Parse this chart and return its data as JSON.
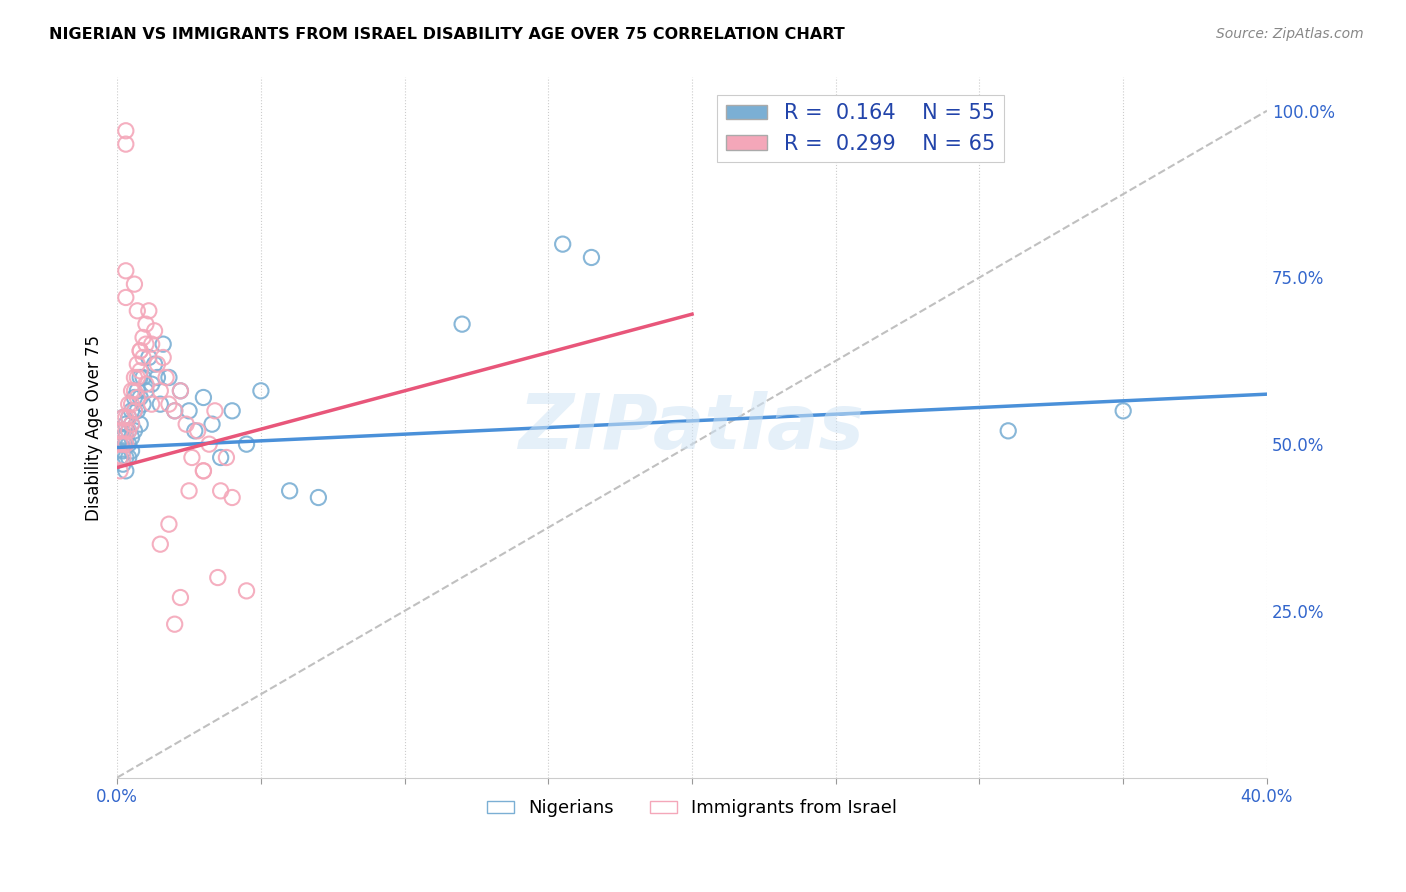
{
  "title": "NIGERIAN VS IMMIGRANTS FROM ISRAEL DISABILITY AGE OVER 75 CORRELATION CHART",
  "source": "Source: ZipAtlas.com",
  "ylabel": "Disability Age Over 75",
  "xlim": [
    0.0,
    0.4
  ],
  "ylim": [
    0.0,
    1.05
  ],
  "xtick_positions": [
    0.0,
    0.05,
    0.1,
    0.15,
    0.2,
    0.25,
    0.3,
    0.35,
    0.4
  ],
  "xticklabels": [
    "0.0%",
    "",
    "",
    "",
    "",
    "",
    "",
    "",
    "40.0%"
  ],
  "ytick_positions": [
    0.0,
    0.25,
    0.5,
    0.75,
    1.0
  ],
  "yticklabels_right": [
    "",
    "25.0%",
    "50.0%",
    "75.0%",
    "100.0%"
  ],
  "blue_color": "#7bafd4",
  "pink_color": "#f4a7b9",
  "blue_line_color": "#4a90d9",
  "pink_line_color": "#e8567a",
  "diagonal_color": "#c0c0c0",
  "legend_R_blue": "0.164",
  "legend_N_blue": "55",
  "legend_R_pink": "0.299",
  "legend_N_pink": "65",
  "legend_text_color": "#2244aa",
  "watermark": "ZIPatlas",
  "blue_line_x0": 0.0,
  "blue_line_x1": 0.4,
  "blue_line_y0": 0.495,
  "blue_line_y1": 0.575,
  "pink_line_x0": 0.0,
  "pink_line_x1": 0.2,
  "pink_line_y0": 0.465,
  "pink_line_y1": 0.695,
  "nigerian_x": [
    0.001,
    0.001,
    0.001,
    0.002,
    0.002,
    0.002,
    0.002,
    0.003,
    0.003,
    0.003,
    0.003,
    0.003,
    0.004,
    0.004,
    0.004,
    0.004,
    0.005,
    0.005,
    0.005,
    0.005,
    0.006,
    0.006,
    0.006,
    0.007,
    0.007,
    0.008,
    0.008,
    0.008,
    0.009,
    0.009,
    0.01,
    0.011,
    0.012,
    0.013,
    0.014,
    0.015,
    0.016,
    0.018,
    0.02,
    0.022,
    0.025,
    0.027,
    0.03,
    0.033,
    0.036,
    0.04,
    0.045,
    0.05,
    0.06,
    0.07,
    0.12,
    0.155,
    0.165,
    0.31,
    0.35
  ],
  "nigerian_y": [
    0.52,
    0.5,
    0.48,
    0.54,
    0.51,
    0.49,
    0.47,
    0.53,
    0.51,
    0.5,
    0.48,
    0.46,
    0.54,
    0.52,
    0.5,
    0.48,
    0.55,
    0.53,
    0.51,
    0.49,
    0.57,
    0.55,
    0.52,
    0.58,
    0.55,
    0.6,
    0.57,
    0.53,
    0.6,
    0.56,
    0.58,
    0.63,
    0.59,
    0.62,
    0.6,
    0.56,
    0.65,
    0.6,
    0.55,
    0.58,
    0.55,
    0.52,
    0.57,
    0.53,
    0.48,
    0.55,
    0.5,
    0.58,
    0.43,
    0.42,
    0.68,
    0.8,
    0.78,
    0.52,
    0.55
  ],
  "israel_x": [
    0.001,
    0.001,
    0.001,
    0.001,
    0.002,
    0.002,
    0.002,
    0.002,
    0.003,
    0.003,
    0.003,
    0.003,
    0.003,
    0.004,
    0.004,
    0.004,
    0.005,
    0.005,
    0.005,
    0.006,
    0.006,
    0.006,
    0.007,
    0.007,
    0.007,
    0.008,
    0.008,
    0.009,
    0.009,
    0.01,
    0.01,
    0.011,
    0.012,
    0.013,
    0.014,
    0.015,
    0.016,
    0.017,
    0.018,
    0.02,
    0.022,
    0.024,
    0.026,
    0.028,
    0.03,
    0.032,
    0.034,
    0.036,
    0.038,
    0.04,
    0.006,
    0.007,
    0.008,
    0.01,
    0.012,
    0.003,
    0.003,
    0.015,
    0.018,
    0.025,
    0.03,
    0.035,
    0.045,
    0.02,
    0.022
  ],
  "israel_y": [
    0.52,
    0.5,
    0.48,
    0.46,
    0.54,
    0.52,
    0.5,
    0.48,
    0.97,
    0.95,
    0.54,
    0.52,
    0.5,
    0.56,
    0.54,
    0.52,
    0.58,
    0.56,
    0.53,
    0.6,
    0.58,
    0.55,
    0.62,
    0.6,
    0.57,
    0.64,
    0.61,
    0.66,
    0.63,
    0.68,
    0.65,
    0.7,
    0.65,
    0.67,
    0.62,
    0.58,
    0.63,
    0.6,
    0.56,
    0.55,
    0.58,
    0.53,
    0.48,
    0.52,
    0.46,
    0.5,
    0.55,
    0.43,
    0.48,
    0.42,
    0.74,
    0.7,
    0.64,
    0.59,
    0.56,
    0.76,
    0.72,
    0.35,
    0.38,
    0.43,
    0.46,
    0.3,
    0.28,
    0.23,
    0.27
  ]
}
